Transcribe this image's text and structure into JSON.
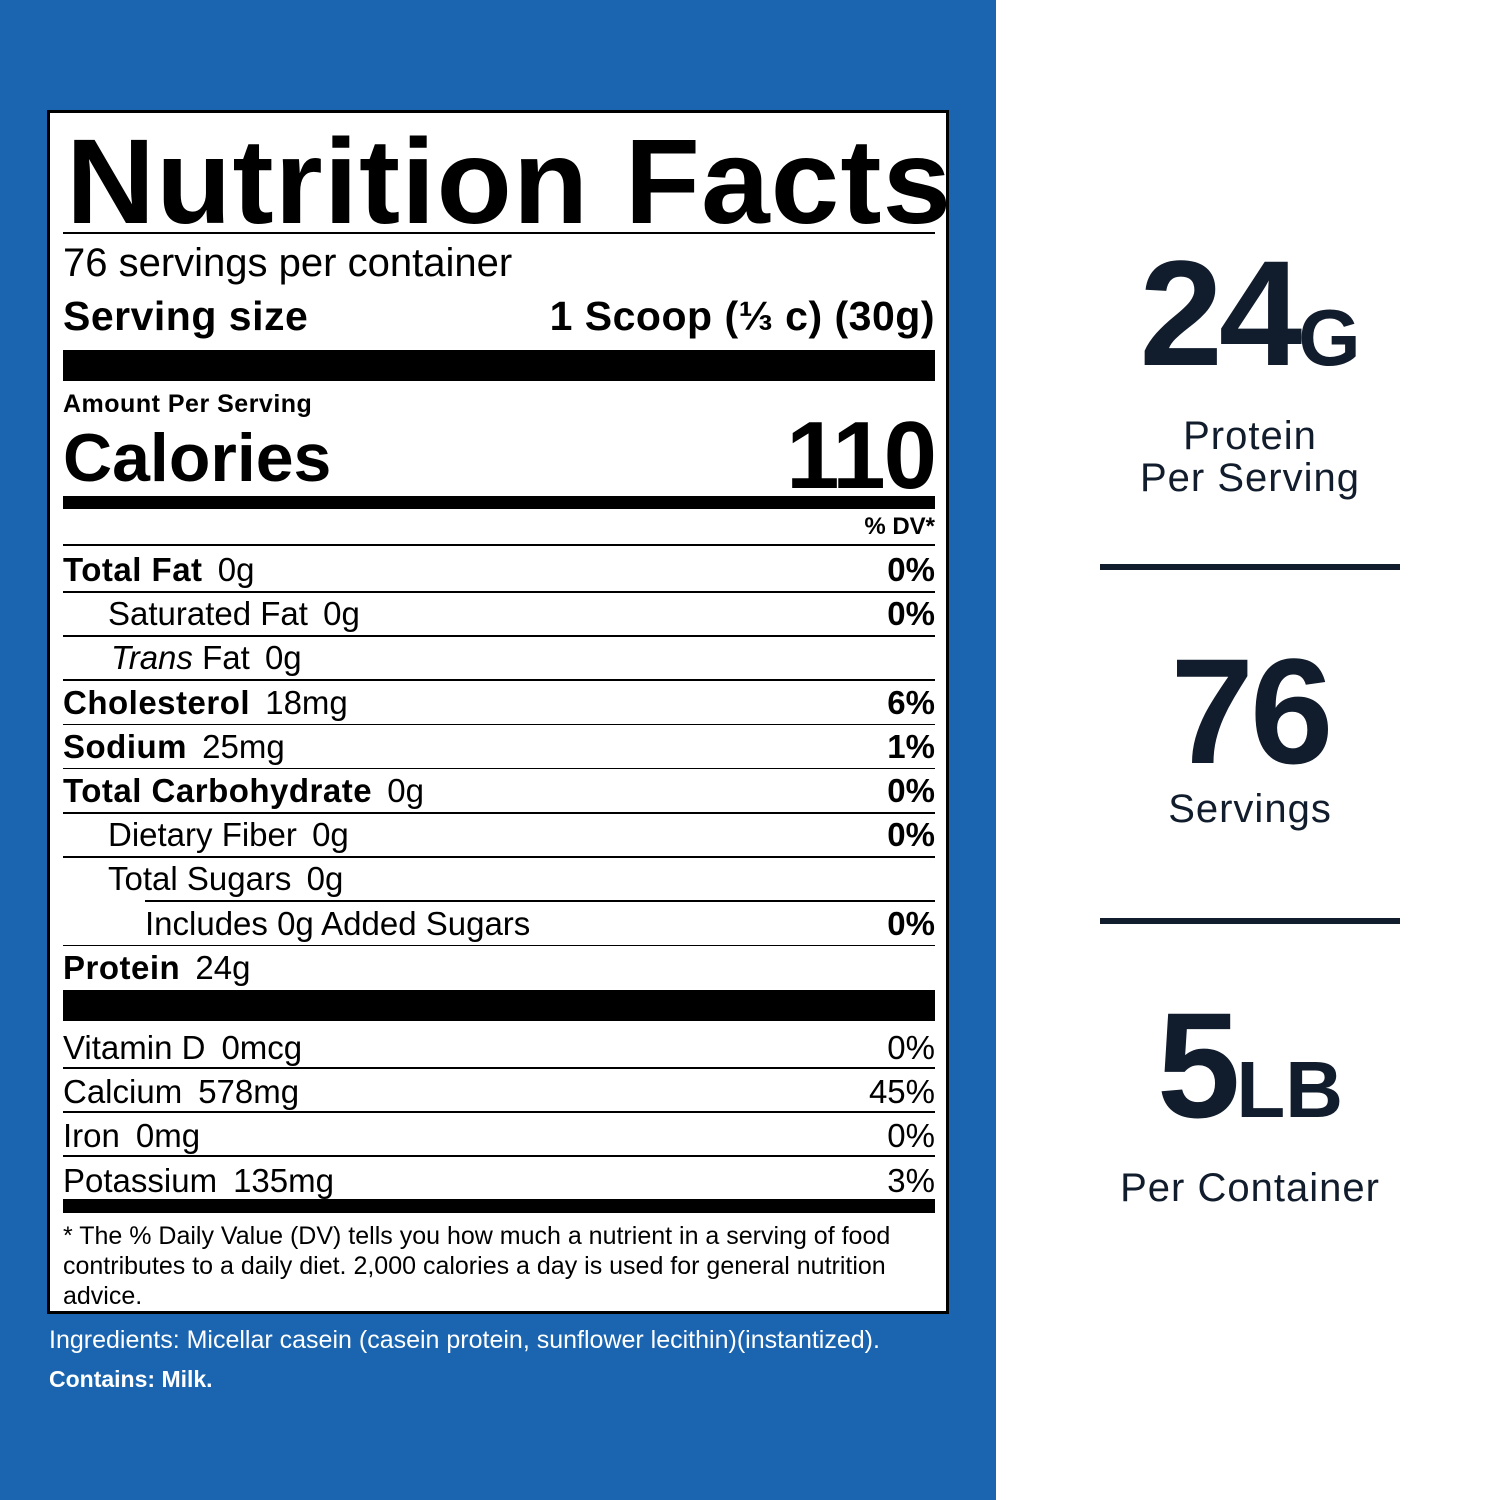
{
  "colors": {
    "panel": "#1a64b0",
    "text_dark": "#111c2c"
  },
  "label": {
    "title": "Nutrition Facts",
    "servings_per_container": "76 servings per container",
    "serving_size_label": "Serving size",
    "serving_size_value": "1 Scoop (⅓ c) (30g)",
    "amount_per_serving": "Amount Per Serving",
    "calories_label": "Calories",
    "calories_value": "110",
    "dv_header": "% DV*",
    "nutrients": [
      {
        "name": "Total Fat",
        "amount": "0g",
        "dv": "0%"
      },
      {
        "name": "Saturated Fat",
        "amount": "0g",
        "dv": "0%"
      },
      {
        "name": "Trans",
        "name_suffix": "Fat",
        "amount": "0g",
        "dv": ""
      },
      {
        "name": "Cholesterol",
        "amount": "18mg",
        "dv": "6%"
      },
      {
        "name": "Sodium",
        "amount": "25mg",
        "dv": "1%"
      },
      {
        "name": "Total Carbohydrate",
        "amount": "0g",
        "dv": "0%"
      },
      {
        "name": "Dietary Fiber",
        "amount": "0g",
        "dv": "0%"
      },
      {
        "name": "Total Sugars",
        "amount": "0g",
        "dv": ""
      },
      {
        "name": "Includes 0g Added Sugars",
        "amount": "",
        "dv": "0%"
      },
      {
        "name": "Protein",
        "amount": "24g",
        "dv": ""
      }
    ],
    "vitamins": [
      {
        "name": "Vitamin D",
        "amount": "0mcg",
        "dv": "0%"
      },
      {
        "name": "Calcium",
        "amount": "578mg",
        "dv": "45%"
      },
      {
        "name": "Iron",
        "amount": "0mg",
        "dv": "0%"
      },
      {
        "name": "Potassium",
        "amount": "135mg",
        "dv": "3%"
      }
    ],
    "footnote": "* The % Daily Value (DV) tells you how much a nutrient in a serving of food contributes to a daily diet. 2,000 calories a day is used for general nutrition advice."
  },
  "ingredients": "Ingredients: Micellar casein (casein protein, sunflower lecithin)(instantized).",
  "contains": "Contains: Milk.",
  "stats": [
    {
      "value": "24",
      "unit": "G",
      "line1": "Protein",
      "line2": "Per Serving"
    },
    {
      "value": "76",
      "unit": "",
      "line1": "Servings",
      "line2": ""
    },
    {
      "value": "5",
      "unit": "LB",
      "line1": "Per Container",
      "line2": ""
    }
  ]
}
